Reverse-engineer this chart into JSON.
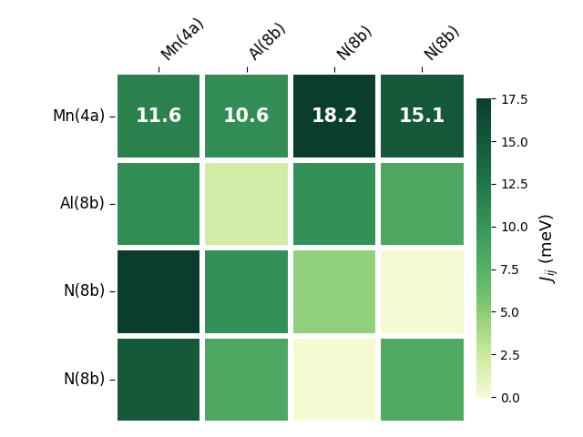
{
  "matrix": [
    [
      11.6,
      10.6,
      18.2,
      15.1
    ],
    [
      10.6,
      2.0,
      10.4,
      8.3
    ],
    [
      18.2,
      10.4,
      4.7,
      -1.7
    ],
    [
      15.1,
      8.3,
      -1.7,
      8.2
    ]
  ],
  "row_labels": [
    "Mn(4a)",
    "Al(8b)",
    "N(8b)",
    "N(8b)"
  ],
  "col_labels": [
    "Mn(4a)",
    "Al(8b)",
    "N(8b)",
    "N(8b)"
  ],
  "colorbar_label": "$J_{ij}$ (meV)",
  "vmin": 0.0,
  "vmax": 17.5,
  "cmap_colors": [
    [
      0.0,
      "#f5fad3"
    ],
    [
      0.15,
      "#c8e89a"
    ],
    [
      0.35,
      "#6abf69"
    ],
    [
      0.55,
      "#3a9a5c"
    ],
    [
      0.75,
      "#1d6e43"
    ],
    [
      1.0,
      "#0b3d2e"
    ]
  ],
  "colorbar_ticks": [
    0.0,
    2.5,
    5.0,
    7.5,
    10.0,
    12.5,
    15.0,
    17.5
  ],
  "figsize": [
    6.4,
    4.8
  ],
  "dpi": 100,
  "font_size_annot": 15,
  "font_size_labels": 12,
  "font_size_cbar": 13,
  "linewidths": 3,
  "linecolor": "white"
}
